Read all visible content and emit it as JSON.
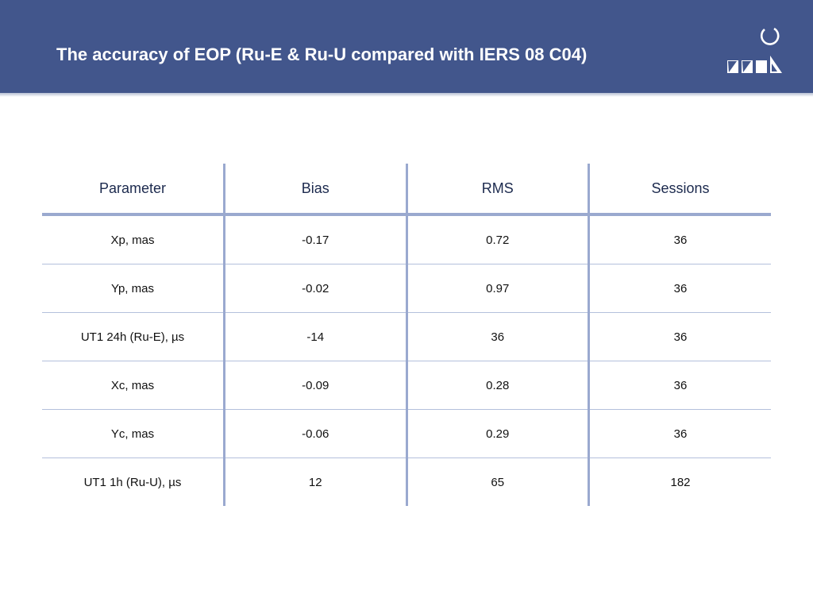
{
  "slide": {
    "title": "The accuracy of EOP (Ru-E & Ru-U compared with IERS 08 C04)",
    "logo": {
      "icon": "institute-logo",
      "colors": {
        "header": "#42568c",
        "logo": "#ffffff"
      }
    }
  },
  "table": {
    "headers": [
      "Parameter",
      "Bias",
      "RMS",
      "Sessions"
    ],
    "rows": [
      [
        "Xp, mas",
        "-0.17",
        "0.72",
        "36"
      ],
      [
        "Yp, mas",
        "-0.02",
        "0.97",
        "36"
      ],
      [
        "UT1 24h (Ru-E), µs",
        "-14",
        "36",
        "36"
      ],
      [
        "Xc, mas",
        "-0.09",
        "0.28",
        "36"
      ],
      [
        "Yc, mas",
        "-0.06",
        "0.29",
        "36"
      ],
      [
        "UT1 1h (Ru-U), µs",
        "12",
        "65",
        "182"
      ]
    ]
  }
}
